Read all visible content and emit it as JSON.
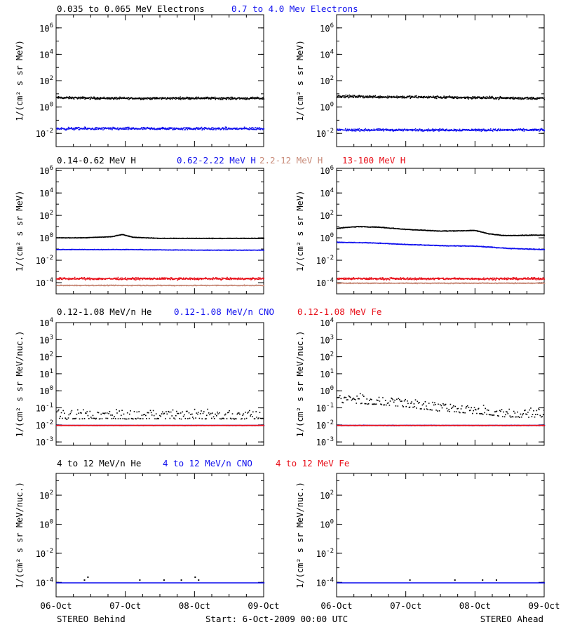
{
  "colors": {
    "black": "#000000",
    "blue": "#1010ee",
    "tan": "#c88a78",
    "red": "#e8101a"
  },
  "footer": {
    "left_label": "STEREO Behind",
    "center_label": "Start:  6-Oct-2009 00:00 UTC",
    "right_label": "STEREO Ahead"
  },
  "chart_data": [
    {
      "row": 1,
      "type": "scatter",
      "yscale": "log",
      "ylabel": "1/(cm² s sr MeV)",
      "x_ticks": [
        "06-Oct",
        "07-Oct",
        "08-Oct",
        "09-Oct"
      ],
      "y_ticks": [
        "10^-2",
        "10^0",
        "10^2",
        "10^4",
        "10^6"
      ],
      "ylim_log10": [
        -3,
        7
      ],
      "legend": [
        {
          "label": "0.035 to 0.065 MeV Electrons",
          "color": "#000000"
        },
        {
          "label": "0.7 to 4.0 Mev Electrons",
          "color": "#1010ee"
        }
      ],
      "panels": {
        "behind": [
          {
            "name": "0.035 to 0.065 MeV Electrons",
            "color": "#000000",
            "x_days": [
              0,
              0.5,
              1,
              1.5,
              2,
              2.5,
              3
            ],
            "log10_y": [
              0.75,
              0.72,
              0.7,
              0.7,
              0.72,
              0.7,
              0.7
            ],
            "scatter": 0.12
          },
          {
            "name": "0.7 to 4.0 Mev Electrons",
            "color": "#1010ee",
            "x_days": [
              0,
              0.5,
              1,
              1.5,
              2,
              2.5,
              3
            ],
            "log10_y": [
              -1.6,
              -1.6,
              -1.6,
              -1.6,
              -1.6,
              -1.6,
              -1.6
            ],
            "scatter": 0.14
          }
        ],
        "ahead": [
          {
            "name": "0.035 to 0.065 MeV Electrons",
            "color": "#000000",
            "x_days": [
              0,
              0.5,
              1,
              1.5,
              2,
              2.5,
              3
            ],
            "log10_y": [
              0.85,
              0.82,
              0.8,
              0.78,
              0.75,
              0.72,
              0.7
            ],
            "scatter": 0.14
          },
          {
            "name": "0.7 to 4.0 Mev Electrons",
            "color": "#1010ee",
            "x_days": [
              0,
              0.5,
              1,
              1.5,
              2,
              2.5,
              3
            ],
            "log10_y": [
              -1.7,
              -1.7,
              -1.7,
              -1.7,
              -1.7,
              -1.7,
              -1.7
            ],
            "scatter": 0.12
          }
        ]
      }
    },
    {
      "row": 2,
      "type": "scatter",
      "yscale": "log",
      "ylabel": "1/(cm² s sr MeV)",
      "x_ticks": [
        "06-Oct",
        "07-Oct",
        "08-Oct",
        "09-Oct"
      ],
      "y_ticks": [
        "10^-4",
        "10^-2",
        "10^0",
        "10^2",
        "10^4",
        "10^6"
      ],
      "ylim_log10": [
        -5,
        6.2
      ],
      "legend": [
        {
          "label": "0.14-0.62 MeV H",
          "color": "#000000"
        },
        {
          "label": "0.62-2.22 MeV H",
          "color": "#1010ee"
        },
        {
          "label": "2.2-12 MeV H",
          "color": "#c88a78"
        },
        {
          "label": "13-100 MeV H",
          "color": "#e8101a"
        }
      ],
      "panels": {
        "behind": [
          {
            "name": "0.14-0.62 MeV H",
            "color": "#000000",
            "x_days": [
              0,
              0.4,
              0.8,
              0.95,
              1.1,
              1.5,
              2,
              2.5,
              3
            ],
            "log10_y": [
              0.05,
              0.05,
              0.15,
              0.35,
              0.1,
              0.0,
              0.0,
              0.0,
              0.0
            ],
            "scatter": 0.03
          },
          {
            "name": "0.62-2.22 MeV H",
            "color": "#1010ee",
            "x_days": [
              0,
              1,
              2,
              3
            ],
            "log10_y": [
              -1.0,
              -1.0,
              -1.05,
              -1.05
            ],
            "scatter": 0.03
          },
          {
            "name": "13-100 MeV H",
            "color": "#e8101a",
            "x_days": [
              0,
              1,
              2,
              3
            ],
            "log10_y": [
              -3.6,
              -3.6,
              -3.6,
              -3.6
            ],
            "scatter": 0.13
          },
          {
            "name": "2.2-12 MeV H",
            "color": "#c88a78",
            "x_days": [
              0,
              1,
              2,
              3
            ],
            "log10_y": [
              -4.2,
              -4.2,
              -4.2,
              -4.2
            ],
            "scatter": 0.05
          }
        ],
        "ahead": [
          {
            "name": "0.14-0.62 MeV H",
            "color": "#000000",
            "x_days": [
              0,
              0.3,
              0.6,
              1.0,
              1.5,
              2.0,
              2.2,
              2.4,
              3.0
            ],
            "log10_y": [
              0.9,
              1.05,
              1.0,
              0.8,
              0.65,
              0.7,
              0.4,
              0.25,
              0.3
            ],
            "scatter": 0.04
          },
          {
            "name": "0.62-2.22 MeV H",
            "color": "#1010ee",
            "x_days": [
              0,
              0.5,
              1.0,
              1.5,
              2.0,
              2.5,
              3.0
            ],
            "log10_y": [
              -0.35,
              -0.4,
              -0.55,
              -0.65,
              -0.7,
              -0.9,
              -1.0
            ],
            "scatter": 0.04
          },
          {
            "name": "13-100 MeV H",
            "color": "#e8101a",
            "x_days": [
              0,
              1,
              2,
              3
            ],
            "log10_y": [
              -3.6,
              -3.6,
              -3.6,
              -3.6
            ],
            "scatter": 0.13
          },
          {
            "name": "2.2-12 MeV H",
            "color": "#c88a78",
            "x_days": [
              0,
              1,
              2,
              3
            ],
            "log10_y": [
              -4.0,
              -4.0,
              -4.0,
              -4.0
            ],
            "scatter": 0.05
          }
        ]
      }
    },
    {
      "row": 3,
      "type": "scatter",
      "yscale": "log",
      "ylabel": "1/(cm² s sr MeV/nuc.)",
      "x_ticks": [
        "06-Oct",
        "07-Oct",
        "08-Oct",
        "09-Oct"
      ],
      "y_ticks": [
        "10^-3",
        "10^-2",
        "10^-1",
        "10^0",
        "10^1",
        "10^2",
        "10^3",
        "10^4"
      ],
      "ylim_log10": [
        -3.2,
        4
      ],
      "legend": [
        {
          "label": "0.12-1.08 MeV/n He",
          "color": "#000000"
        },
        {
          "label": "0.12-1.08 MeV/n CNO",
          "color": "#1010ee"
        },
        {
          "label": "0.12-1.08 MeV Fe",
          "color": "#e8101a"
        }
      ],
      "panels": {
        "behind": [
          {
            "name": "0.12-1.08 MeV/n He",
            "color": "#000000",
            "x_days": [
              0,
              1,
              2,
              3
            ],
            "log10_y": [
              -1.3,
              -1.3,
              -1.3,
              -1.3
            ],
            "scatter": 0.35
          },
          {
            "name": "0.12-1.08 MeV/n CNO",
            "color": "#1010ee",
            "x_days": [
              0,
              1,
              2,
              3
            ],
            "log10_y": [
              -2.0,
              -2.0,
              -2.0,
              -2.0
            ],
            "scatter": 0.01
          },
          {
            "name": "0.12-1.08 MeV Fe",
            "color": "#e8101a",
            "x_days": [
              0,
              1,
              2,
              3
            ],
            "log10_y": [
              -2.0,
              -2.0,
              -2.0,
              -2.0
            ],
            "scatter": 0.01
          }
        ],
        "ahead": [
          {
            "name": "0.12-1.08 MeV/n He",
            "color": "#000000",
            "x_days": [
              0,
              0.5,
              1.0,
              1.5,
              2.0,
              2.5,
              3.0
            ],
            "log10_y": [
              -0.35,
              -0.45,
              -0.6,
              -0.85,
              -1.0,
              -1.2,
              -1.2
            ],
            "scatter": 0.3
          },
          {
            "name": "0.12-1.08 MeV/n CNO",
            "color": "#1010ee",
            "x_days": [
              0,
              1,
              2,
              3
            ],
            "log10_y": [
              -2.0,
              -2.0,
              -2.0,
              -2.0
            ],
            "scatter": 0.02
          },
          {
            "name": "0.12-1.08 MeV Fe",
            "color": "#e8101a",
            "x_days": [
              0,
              1,
              2,
              3
            ],
            "log10_y": [
              -2.0,
              -2.0,
              -2.0,
              -2.0
            ],
            "scatter": 0.01
          }
        ]
      }
    },
    {
      "row": 4,
      "type": "scatter",
      "yscale": "log",
      "ylabel": "1/(cm² s sr MeV/nuc.)",
      "x_ticks": [
        "06-Oct",
        "07-Oct",
        "08-Oct",
        "09-Oct"
      ],
      "y_ticks": [
        "10^-4",
        "10^-2",
        "10^0",
        "10^2"
      ],
      "ylim_log10": [
        -5,
        3.5
      ],
      "legend": [
        {
          "label": "4 to 12 MeV/n He",
          "color": "#000000"
        },
        {
          "label": "4 to 12 MeV/n CNO",
          "color": "#1010ee"
        },
        {
          "label": "4 to 12 MeV Fe",
          "color": "#e8101a"
        }
      ],
      "panels": {
        "behind": [
          {
            "name": "4 to 12 MeV/n CNO",
            "color": "#1010ee",
            "x_days": [
              0,
              1,
              2,
              3
            ],
            "log10_y": [
              -4.0,
              -4.0,
              -4.0,
              -4.0
            ],
            "scatter": 0.0
          },
          {
            "name": "4 to 12 MeV/n He",
            "color": "#000000",
            "x_days": [
              0.4,
              0.45,
              1.2,
              1.55,
              1.8,
              2.0,
              2.05
            ],
            "log10_y": [
              -3.8,
              -3.6,
              -3.8,
              -3.8,
              -3.8,
              -3.6,
              -3.8
            ],
            "scatter": 0.0
          }
        ],
        "ahead": [
          {
            "name": "4 to 12 MeV/n CNO",
            "color": "#1010ee",
            "x_days": [
              0,
              1,
              2,
              3
            ],
            "log10_y": [
              -4.0,
              -4.0,
              -4.0,
              -4.0
            ],
            "scatter": 0.0
          },
          {
            "name": "4 to 12 MeV/n He",
            "color": "#000000",
            "x_days": [
              1.05,
              1.7,
              2.1,
              2.3
            ],
            "log10_y": [
              -3.8,
              -3.8,
              -3.8,
              -3.8
            ],
            "scatter": 0.0
          }
        ]
      }
    }
  ]
}
